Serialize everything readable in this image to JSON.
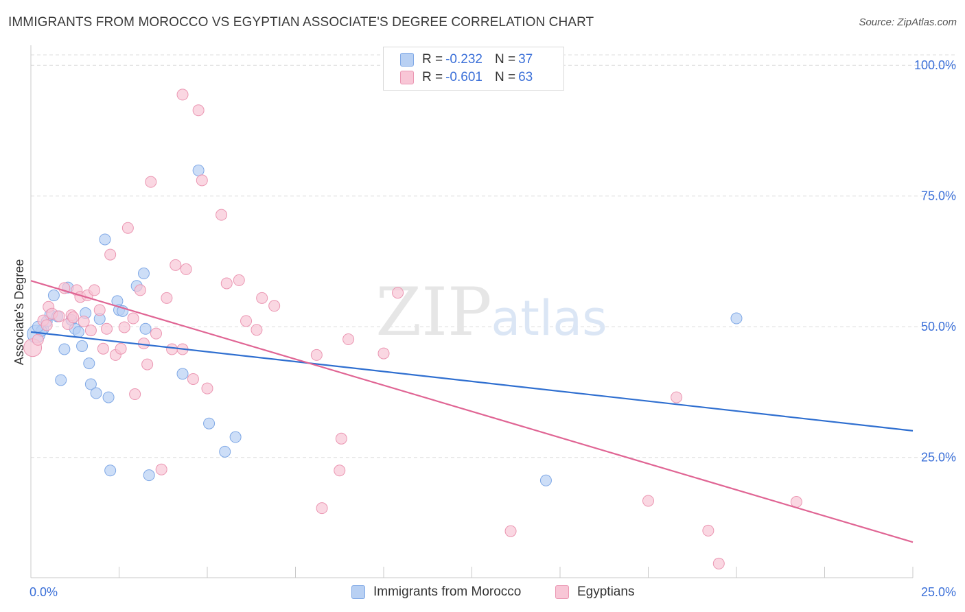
{
  "header": {
    "title": "IMMIGRANTS FROM MOROCCO VS EGYPTIAN ASSOCIATE'S DEGREE CORRELATION CHART",
    "source": "Source: ZipAtlas.com"
  },
  "watermark": {
    "zip": "ZIP",
    "atlas": "atlas"
  },
  "legend": {
    "rows": [
      {
        "r_label": "R =",
        "r_value": "-0.232",
        "n_label": "N =",
        "n_value": "37"
      },
      {
        "r_label": "R =",
        "r_value": "-0.601",
        "n_label": "N =",
        "n_value": "63"
      }
    ]
  },
  "bottom_legend": {
    "series1": "Immigrants from Morocco",
    "series2": "Egyptians"
  },
  "colors": {
    "blue_fill": "#b8d0f3",
    "blue_stroke": "#7fa8e6",
    "blue_line": "#2f6fd0",
    "pink_fill": "#f8c6d6",
    "pink_stroke": "#eb96b2",
    "pink_line": "#e06594",
    "axis_label": "#3a6fd8",
    "grid": "#dcdcdc"
  },
  "chart_data": {
    "type": "scatter",
    "title": "IMMIGRANTS FROM MOROCCO VS EGYPTIAN ASSOCIATE'S DEGREE CORRELATION CHART",
    "xlabel": "",
    "ylabel": "Associate's Degree",
    "xlim": [
      0,
      25
    ],
    "ylim": [
      2,
      102
    ],
    "x_tick_labels": [
      "0.0%",
      "25.0%"
    ],
    "y_ticks": [
      25,
      50,
      75,
      100
    ],
    "y_tick_labels": [
      "25.0%",
      "50.0%",
      "75.0%",
      "100.0%"
    ],
    "grid": true,
    "series": [
      {
        "name": "Immigrants from Morocco",
        "r": -0.232,
        "n": 37,
        "trend": {
          "x": [
            0,
            25
          ],
          "y": [
            49.0,
            30.1
          ]
        },
        "points": [
          [
            0.15,
            48.6
          ],
          [
            0.35,
            49.5
          ],
          [
            0.45,
            51.0
          ],
          [
            0.55,
            52.3
          ],
          [
            0.65,
            56.0
          ],
          [
            0.75,
            52.0
          ],
          [
            0.85,
            39.8
          ],
          [
            0.95,
            45.7
          ],
          [
            1.05,
            57.5
          ],
          [
            1.15,
            51.3
          ],
          [
            1.25,
            49.6
          ],
          [
            1.35,
            49.0
          ],
          [
            1.45,
            46.3
          ],
          [
            1.55,
            52.6
          ],
          [
            1.65,
            43.0
          ],
          [
            1.7,
            39.0
          ],
          [
            1.85,
            37.3
          ],
          [
            1.95,
            51.5
          ],
          [
            2.1,
            66.7
          ],
          [
            2.2,
            36.5
          ],
          [
            2.25,
            22.5
          ],
          [
            2.45,
            54.9
          ],
          [
            2.5,
            53.2
          ],
          [
            2.6,
            53.0
          ],
          [
            3.0,
            57.8
          ],
          [
            3.2,
            60.2
          ],
          [
            3.25,
            49.6
          ],
          [
            3.35,
            21.6
          ],
          [
            4.3,
            41.0
          ],
          [
            4.75,
            79.9
          ],
          [
            5.05,
            31.5
          ],
          [
            5.5,
            26.1
          ],
          [
            5.8,
            28.9
          ],
          [
            14.6,
            20.6
          ],
          [
            20.0,
            51.6
          ],
          [
            0.3,
            49.2
          ],
          [
            0.2,
            50.0
          ]
        ]
      },
      {
        "name": "Egyptians",
        "r": -0.601,
        "n": 63,
        "trend": {
          "x": [
            0,
            25
          ],
          "y": [
            58.8,
            8.8
          ]
        },
        "points": [
          [
            0.05,
            46.0
          ],
          [
            0.2,
            47.5
          ],
          [
            0.35,
            51.2
          ],
          [
            0.5,
            53.8
          ],
          [
            0.6,
            52.5
          ],
          [
            0.8,
            52.0
          ],
          [
            0.95,
            57.4
          ],
          [
            1.05,
            50.5
          ],
          [
            1.15,
            52.2
          ],
          [
            1.3,
            57.0
          ],
          [
            1.4,
            55.7
          ],
          [
            1.5,
            51.0
          ],
          [
            1.6,
            56.0
          ],
          [
            1.7,
            49.3
          ],
          [
            1.8,
            57.0
          ],
          [
            1.95,
            53.2
          ],
          [
            2.05,
            45.8
          ],
          [
            2.15,
            49.6
          ],
          [
            2.25,
            63.8
          ],
          [
            2.4,
            44.6
          ],
          [
            2.55,
            45.8
          ],
          [
            2.65,
            49.9
          ],
          [
            2.75,
            68.9
          ],
          [
            2.9,
            51.6
          ],
          [
            2.95,
            37.1
          ],
          [
            3.1,
            57.0
          ],
          [
            3.2,
            46.8
          ],
          [
            3.3,
            42.8
          ],
          [
            3.4,
            77.7
          ],
          [
            3.55,
            48.7
          ],
          [
            3.7,
            22.7
          ],
          [
            3.85,
            55.5
          ],
          [
            4.0,
            45.7
          ],
          [
            4.1,
            61.8
          ],
          [
            4.3,
            45.7
          ],
          [
            4.4,
            61.0
          ],
          [
            4.6,
            40.0
          ],
          [
            4.75,
            91.4
          ],
          [
            4.85,
            78.0
          ],
          [
            5.0,
            38.2
          ],
          [
            5.4,
            71.4
          ],
          [
            5.55,
            58.3
          ],
          [
            5.9,
            58.9
          ],
          [
            6.1,
            51.1
          ],
          [
            6.4,
            49.4
          ],
          [
            6.55,
            55.5
          ],
          [
            6.9,
            54.0
          ],
          [
            8.1,
            44.6
          ],
          [
            8.25,
            15.3
          ],
          [
            8.75,
            22.5
          ],
          [
            8.8,
            28.6
          ],
          [
            9.0,
            47.6
          ],
          [
            10.0,
            44.9
          ],
          [
            10.4,
            56.5
          ],
          [
            13.6,
            10.9
          ],
          [
            17.5,
            16.7
          ],
          [
            18.3,
            36.5
          ],
          [
            19.2,
            11.0
          ],
          [
            19.5,
            4.7
          ],
          [
            21.7,
            16.5
          ],
          [
            4.3,
            94.4
          ],
          [
            0.45,
            50.3
          ],
          [
            1.2,
            51.8
          ]
        ]
      }
    ]
  }
}
